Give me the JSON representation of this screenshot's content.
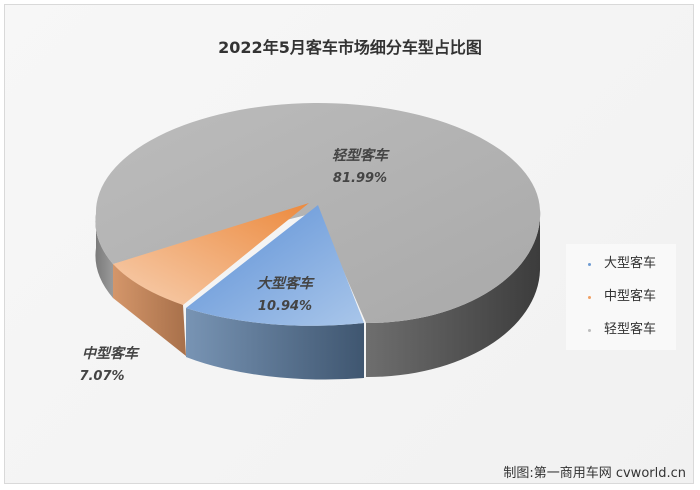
{
  "chart_data": {
    "type": "pie",
    "title": "2022年5月客车市场细分车型占比图",
    "categories": [
      "大型客车",
      "中型客车",
      "轻型客车"
    ],
    "values": [
      10.94,
      7.07,
      81.99
    ],
    "value_labels": [
      "10.94%",
      "7.07%",
      "81.99%"
    ],
    "colors": [
      "#6f9bd2",
      "#f0a064",
      "#bdbdbd"
    ],
    "legend_position": "right",
    "style": "3d-exploded"
  },
  "credit": "制图:第一商用车网 cvworld.cn"
}
